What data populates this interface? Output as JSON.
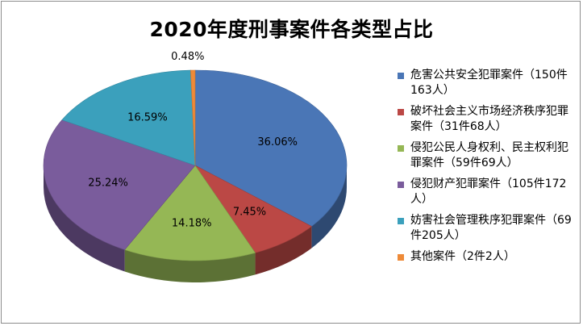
{
  "chart_data": {
    "type": "pie",
    "title": "2020年度刑事案件各类型占比",
    "slices": [
      {
        "name": "危害公共安全犯罪案件（150件163人）",
        "value": 36.06,
        "label": "36.06%",
        "color": "#4a76b6"
      },
      {
        "name": "破坏社会主义市场经济秩序犯罪案件（31件68人）",
        "value": 7.45,
        "label": "7.45%",
        "color": "#bb4845"
      },
      {
        "name": "侵犯公民人身权利、民主权利犯罪案件（59件69人）",
        "value": 14.18,
        "label": "14.18%",
        "color": "#95b755"
      },
      {
        "name": "侵犯财产犯罪案件（105件172人）",
        "value": 25.24,
        "label": "25.24%",
        "color": "#7a5c9c"
      },
      {
        "name": "妨害社会管理秩序犯罪案件（69件205人）",
        "value": 16.59,
        "label": "16.59%",
        "color": "#3ba0bc"
      },
      {
        "name": "其他案件（2件2人）",
        "value": 0.48,
        "label": "0.48%",
        "color": "#ee8a38"
      }
    ],
    "legend_position": "right"
  }
}
